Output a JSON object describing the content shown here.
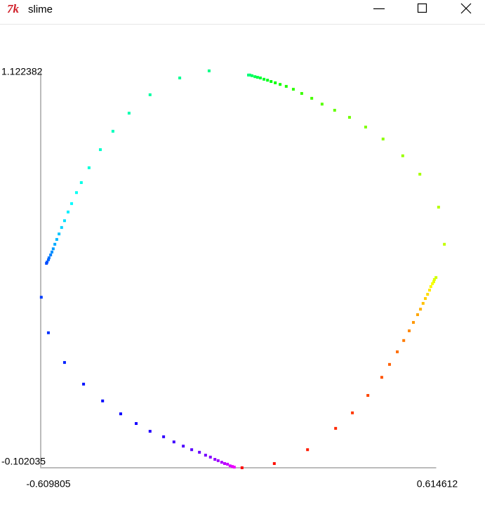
{
  "window_title": "slime",
  "chart_data": {
    "type": "scatter",
    "xlim": [
      -0.609805,
      0.614612
    ],
    "ylim": [
      -0.102035,
      1.122382
    ],
    "xticks": [
      -0.609805,
      0.614612
    ],
    "yticks": [
      -0.102035,
      1.122382
    ],
    "axis_color": "#bbbbbb",
    "colormap": "rainbow",
    "x": [
      0.014,
      0.114,
      0.217,
      0.304,
      0.356,
      0.404,
      0.447,
      0.471,
      0.495,
      0.515,
      0.532,
      0.545,
      0.558,
      0.567,
      0.575,
      0.582,
      0.589,
      0.595,
      0.599,
      0.604,
      0.608,
      0.61,
      0.615,
      0.641,
      0.623,
      0.565,
      0.512,
      0.451,
      0.397,
      0.347,
      0.301,
      0.262,
      0.23,
      0.199,
      0.173,
      0.151,
      0.132,
      0.117,
      0.104,
      0.093,
      0.082,
      0.071,
      0.062,
      0.054,
      0.045,
      0.038,
      0.034,
      -0.088,
      -0.179,
      -0.271,
      -0.336,
      -0.386,
      -0.425,
      -0.46,
      -0.484,
      -0.499,
      -0.514,
      -0.525,
      -0.536,
      -0.545,
      -0.553,
      -0.56,
      -0.566,
      -0.571,
      -0.575,
      -0.579,
      -0.584,
      -0.586,
      -0.59,
      -0.592,
      -0.608,
      -0.586,
      -0.536,
      -0.477,
      -0.418,
      -0.362,
      -0.314,
      -0.271,
      -0.229,
      -0.197,
      -0.168,
      -0.142,
      -0.118,
      -0.099,
      -0.084,
      -0.07,
      -0.06,
      -0.049,
      -0.04,
      -0.031,
      -0.023,
      -0.016,
      -0.01
    ],
    "values": [
      -0.102,
      -0.089,
      -0.046,
      0.02,
      0.068,
      0.122,
      0.178,
      0.218,
      0.257,
      0.292,
      0.322,
      0.348,
      0.372,
      0.389,
      0.407,
      0.422,
      0.435,
      0.448,
      0.459,
      0.468,
      0.474,
      0.481,
      0.487,
      0.59,
      0.705,
      0.807,
      0.864,
      0.916,
      0.953,
      0.983,
      1.005,
      1.024,
      1.042,
      1.057,
      1.07,
      1.079,
      1.085,
      1.09,
      1.094,
      1.098,
      1.101,
      1.105,
      1.107,
      1.109,
      1.112,
      1.114,
      1.114,
      1.127,
      1.105,
      1.053,
      0.996,
      0.94,
      0.883,
      0.827,
      0.781,
      0.75,
      0.716,
      0.69,
      0.663,
      0.642,
      0.622,
      0.605,
      0.59,
      0.576,
      0.566,
      0.557,
      0.548,
      0.542,
      0.535,
      0.531,
      0.426,
      0.316,
      0.224,
      0.157,
      0.105,
      0.065,
      0.035,
      0.011,
      -0.006,
      -0.022,
      -0.035,
      -0.046,
      -0.054,
      -0.063,
      -0.069,
      -0.076,
      -0.08,
      -0.085,
      -0.089,
      -0.091,
      -0.096,
      -0.098,
      -0.1
    ]
  }
}
